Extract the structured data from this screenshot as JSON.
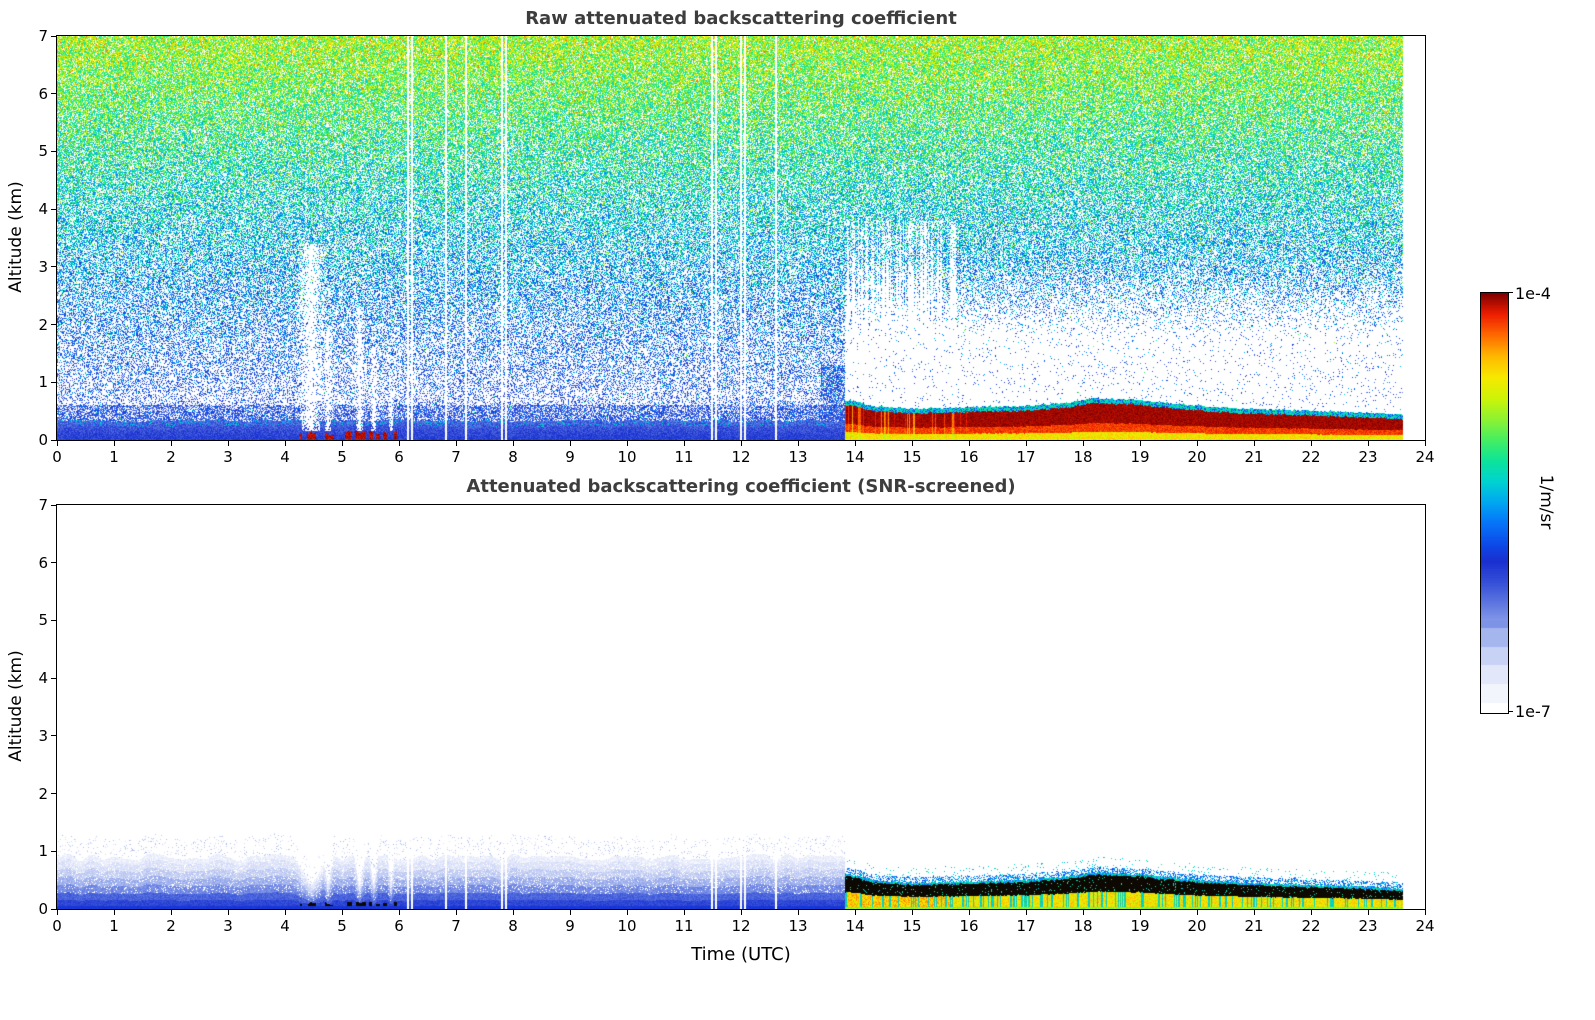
{
  "chart_data": {
    "type": "heatmap",
    "xlabel": "Time (UTC)",
    "x_range": [
      0,
      24
    ],
    "x_ticks": [
      0,
      1,
      2,
      3,
      4,
      5,
      6,
      7,
      8,
      9,
      10,
      11,
      12,
      13,
      14,
      15,
      16,
      17,
      18,
      19,
      20,
      21,
      22,
      23,
      24
    ],
    "y_range": [
      0,
      7
    ],
    "y_ticks": [
      0,
      1,
      2,
      3,
      4,
      5,
      6,
      7
    ],
    "panels": [
      {
        "title": "Raw attenuated backscattering coefficient",
        "ylabel": "Altitude (km)",
        "screened": false
      },
      {
        "title": "Attenuated backscattering coefficient (SNR-screened)",
        "ylabel": "Altitude (km)",
        "screened": true
      }
    ],
    "colorbar": {
      "max_label": "1e-4",
      "min_label": "1e-7",
      "unit_label": "1/m/sr",
      "vmin": 1e-07,
      "vmax": 0.0001
    },
    "features": {
      "transition_time_utc": 13.82,
      "data_end_utc": 23.6,
      "fog_interval_utc": [
        4.25,
        5.95
      ],
      "data_gap_times_utc": [
        6.15,
        6.22,
        6.82,
        7.17,
        7.8,
        7.87,
        11.48,
        11.55,
        11.99,
        12.06,
        12.6
      ],
      "attenuation_plumes": [
        {
          "t": 4.45,
          "w": 0.28,
          "h": 3.4
        },
        {
          "t": 4.75,
          "w": 0.1,
          "h": 2.0
        },
        {
          "t": 5.3,
          "w": 0.1,
          "h": 2.3
        },
        {
          "t": 5.55,
          "w": 0.08,
          "h": 1.6
        },
        {
          "t": 5.85,
          "w": 0.06,
          "h": 1.2
        }
      ],
      "mixed_layer_haze_top_km": 0.85,
      "aerosol_layer_top_km": [
        [
          13.9,
          0.62
        ],
        [
          14.3,
          0.52
        ],
        [
          15,
          0.47
        ],
        [
          16,
          0.5
        ],
        [
          17,
          0.52
        ],
        [
          17.7,
          0.58
        ],
        [
          18.2,
          0.65
        ],
        [
          19,
          0.62
        ],
        [
          20,
          0.52
        ],
        [
          21,
          0.47
        ],
        [
          22,
          0.44
        ],
        [
          23,
          0.4
        ],
        [
          23.6,
          0.37
        ]
      ]
    },
    "colormap": {
      "stops": [
        [
          0.0,
          "#ffffff"
        ],
        [
          0.05,
          "#f2f4fd"
        ],
        [
          0.09,
          "#e2e7fa"
        ],
        [
          0.13,
          "#ccd5f5"
        ],
        [
          0.17,
          "#aebdf0"
        ],
        [
          0.21,
          "#8b9fe9"
        ],
        [
          0.26,
          "#5e77e0"
        ],
        [
          0.31,
          "#3650d8"
        ],
        [
          0.36,
          "#1b2fd0"
        ],
        [
          0.4,
          "#0d49e8"
        ],
        [
          0.45,
          "#0673f8"
        ],
        [
          0.5,
          "#00a6f2"
        ],
        [
          0.55,
          "#00d2d2"
        ],
        [
          0.6,
          "#0ce49b"
        ],
        [
          0.65,
          "#45ee62"
        ],
        [
          0.7,
          "#8ff232"
        ],
        [
          0.75,
          "#cdf308"
        ],
        [
          0.8,
          "#f7e900"
        ],
        [
          0.85,
          "#ffb800"
        ],
        [
          0.9,
          "#ff6a00"
        ],
        [
          0.95,
          "#ee1e00"
        ],
        [
          1.0,
          "#7e0000"
        ]
      ]
    }
  }
}
